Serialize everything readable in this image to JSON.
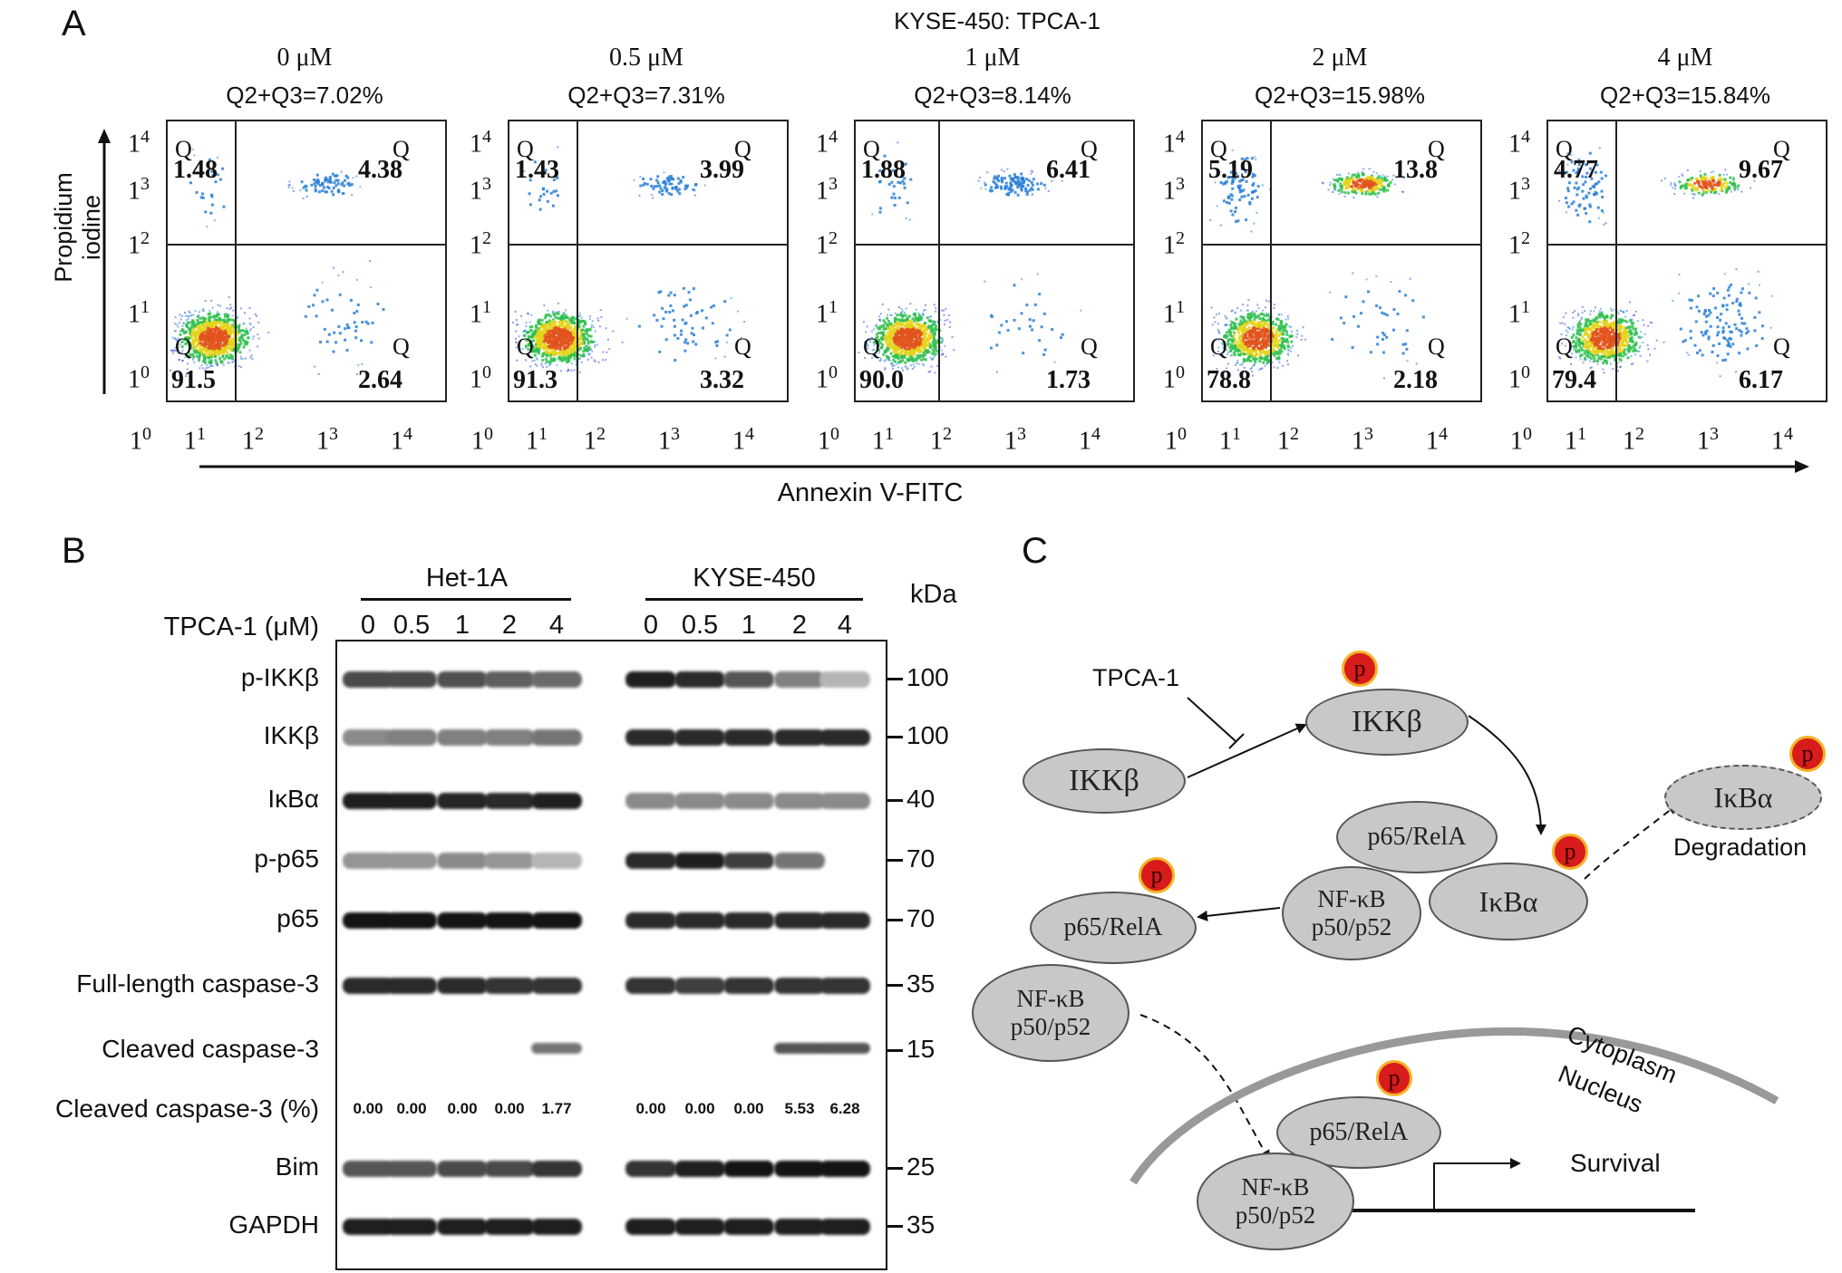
{
  "panel_a": {
    "letter": "A",
    "title": "KYSE-450: TPCA-1",
    "y_axis_label": "Propidium iodine",
    "x_axis_label": "Annexin V-FITC",
    "tick_labels": [
      "1",
      "0",
      "1",
      "1",
      "1",
      "2",
      "1",
      "3",
      "1",
      "4"
    ],
    "quadrant_letter": "Q",
    "plots": [
      {
        "dose": "0 μM",
        "summary": "Q2+Q3=7.02%",
        "ul": "1.48",
        "ur": "4.38",
        "ll": "91.5",
        "lr": "2.64"
      },
      {
        "dose": "0.5 μM",
        "summary": "Q2+Q3=7.31%",
        "ul": "1.43",
        "ur": "3.99",
        "ll": "91.3",
        "lr": "3.32"
      },
      {
        "dose": "1 μM",
        "summary": "Q2+Q3=8.14%",
        "ul": "1.88",
        "ur": "6.41",
        "ll": "90.0",
        "lr": "1.73"
      },
      {
        "dose": "2 μM",
        "summary": "Q2+Q3=15.98%",
        "ul": "5.19",
        "ur": "13.8",
        "ll": "78.8",
        "lr": "2.18"
      },
      {
        "dose": "4 μM",
        "summary": "Q2+Q3=15.84%",
        "ul": "4.77",
        "ur": "9.67",
        "ll": "79.4",
        "lr": "6.17"
      }
    ]
  },
  "panel_b": {
    "letter": "B",
    "group1": "Het-1A",
    "group2": "KYSE-450",
    "kda_header": "kDa",
    "treatment_label": "TPCA-1 (μM)",
    "doses": [
      "0",
      "0.5",
      "1",
      "2",
      "4"
    ],
    "rows": [
      {
        "label": "p-IKKβ",
        "kda": "100"
      },
      {
        "label": "IKKβ",
        "kda": "100"
      },
      {
        "label": "IκBα",
        "kda": "40"
      },
      {
        "label": "p-p65",
        "kda": "70"
      },
      {
        "label": "p65",
        "kda": "70"
      },
      {
        "label": "Full-length caspase-3",
        "kda": "35"
      },
      {
        "label": "Cleaved caspase-3",
        "kda": "15"
      },
      {
        "label": "Cleaved caspase-3 (%)",
        "kda": ""
      },
      {
        "label": "Bim",
        "kda": "25"
      },
      {
        "label": "GAPDH",
        "kda": "35"
      }
    ],
    "cleaved_pct_het": [
      "0.00",
      "0.00",
      "0.00",
      "0.00",
      "1.77"
    ],
    "cleaved_pct_kyse": [
      "0.00",
      "0.00",
      "0.00",
      "5.53",
      "6.28"
    ]
  },
  "panel_c": {
    "letter": "C",
    "inhibitor": "TPCA-1",
    "ikkb": "IKKβ",
    "ikkb_p": "IKKβ",
    "p": "p",
    "ikba": "IκBα",
    "ikba_deg": "IκBα",
    "degradation": "Degradation",
    "p65_complex": "p65/RelA",
    "nfkb_complex": "NF-κB\np50/p52",
    "p65_free": "p65/RelA",
    "nfkb_free": "NF-κB\np50/p52",
    "p65_nuc": "p65/RelA",
    "nfkb_nuc": "NF-κB\np50/p52",
    "cytoplasm": "Cytoplasm",
    "nucleus": "Nucleus",
    "survival": "Survival"
  }
}
